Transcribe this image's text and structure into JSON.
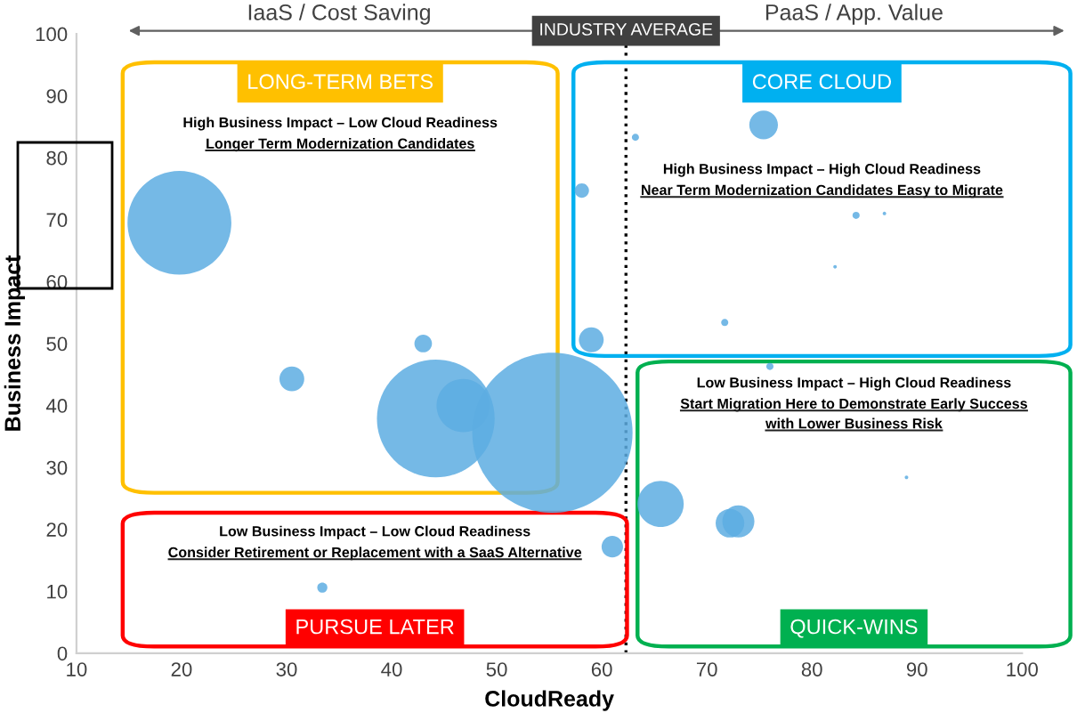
{
  "chart_data": {
    "type": "bubble",
    "xlabel": "CloudReady",
    "ylabel": "Business Impact",
    "xlim": [
      10,
      100
    ],
    "xticks": [
      10,
      20,
      30,
      40,
      50,
      60,
      70,
      80,
      90,
      100
    ],
    "ylim": [
      0,
      100
    ],
    "yticks": [
      0,
      10,
      20,
      30,
      40,
      50,
      60,
      70,
      80,
      90,
      100
    ],
    "grid": false,
    "series": [
      {
        "color": "#5dade2",
        "x": [
          19.8,
          30.5,
          43,
          44.2,
          46.8,
          55.3,
          33.4,
          61,
          65.6,
          72.2,
          73,
          76,
          89,
          75.4,
          63.2,
          58.1,
          84.2,
          86.9,
          82.2,
          71.7,
          59
        ],
        "values": [
          69.5,
          44.3,
          50,
          37.9,
          40,
          35.6,
          10.6,
          17.2,
          24.1,
          21,
          21.3,
          46.3,
          28.4,
          85.3,
          83.3,
          74.7,
          70.7,
          71,
          62.4,
          53.4,
          50.6
        ],
        "sizes": [
          0.42,
          0.024,
          0.012,
          0.54,
          0.11,
          1,
          0.004,
          0.018,
          0.083,
          0.032,
          0.04,
          0.002,
          0.0005,
          0.032,
          0.002,
          0.008,
          0.002,
          0.0005,
          0.0005,
          0.002,
          0.024
        ]
      }
    ],
    "ref_lines": [
      {
        "axis": "x",
        "value": 62.3,
        "label": "INDUSTRY AVERAGE",
        "color": "#000000",
        "line_style": "dotted"
      }
    ],
    "annotations": [
      "IaaS / Cost Saving",
      "PaaS / App. Value",
      "LONG-TERM BETS",
      "CORE CLOUD",
      "PURSUE LATER",
      "QUICK-WINS",
      "High Business Impact – Low Cloud Readiness",
      "Longer Term Modernization Candidates",
      "High Business Impact – High Cloud Readiness",
      "Near Term Modernization Candidates Easy to Migrate",
      "Low Business Impact – Low Cloud Readiness",
      "Consider Retirement or Replacement with a SaaS Alternative",
      "Low Business Impact – High Cloud Readiness",
      "Start Migration Here to Demonstrate Early Success\nwith Lower Business Risk"
    ]
  }
}
